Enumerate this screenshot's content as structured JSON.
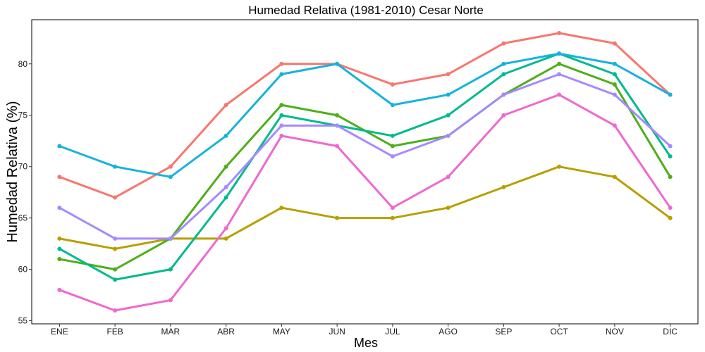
{
  "chart_data": {
    "type": "line",
    "title": "Humedad Relativa (1981-2010)  Cesar Norte",
    "xlabel": "Mes",
    "ylabel": "Humedad Relativa  (%)",
    "categories": [
      "ENE",
      "FEB",
      "MAR",
      "ABR",
      "MAY",
      "JUN",
      "JUL",
      "AGO",
      "SEP",
      "OCT",
      "NOV",
      "DIC"
    ],
    "yticks": [
      55,
      60,
      65,
      70,
      75,
      80
    ],
    "ylim": [
      54.7,
      84.3
    ],
    "grid": false,
    "legend": "none",
    "series": [
      {
        "color": "#F8766D",
        "values": [
          69,
          67,
          70,
          76,
          80,
          80,
          78,
          79,
          82,
          83,
          82,
          77
        ]
      },
      {
        "color": "#B79F00",
        "values": [
          63,
          62,
          63,
          63,
          66,
          65,
          65,
          66,
          68,
          70,
          69,
          65
        ]
      },
      {
        "color": "#4DAF1A",
        "values": [
          61,
          60,
          63,
          70,
          76,
          75,
          72,
          73,
          77,
          80,
          78,
          69
        ]
      },
      {
        "color": "#00BA8D",
        "values": [
          62,
          59,
          60,
          67,
          75,
          74,
          73,
          75,
          79,
          81,
          79,
          71
        ]
      },
      {
        "color": "#16B2DE",
        "values": [
          72,
          70,
          69,
          73,
          79,
          80,
          76,
          77,
          80,
          81,
          80,
          77
        ]
      },
      {
        "color": "#A58AFF",
        "values": [
          66,
          63,
          63,
          68,
          74,
          74,
          71,
          73,
          77,
          79,
          77,
          72
        ]
      },
      {
        "color": "#EF68D0",
        "values": [
          58,
          56,
          57,
          64,
          73,
          72,
          66,
          69,
          75,
          77,
          74,
          66
        ]
      }
    ]
  }
}
